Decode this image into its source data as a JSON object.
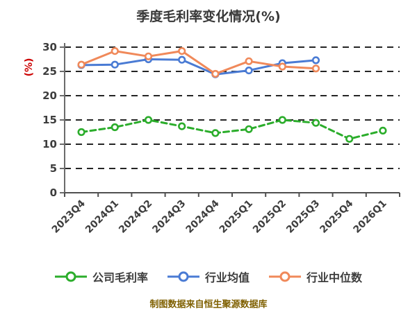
{
  "page": {
    "background": "#ffffff"
  },
  "chart_data": {
    "type": "line",
    "title": "季度毛利率变化情况(%)",
    "ylabel": "(%)",
    "ylabel_color": "#cc0000",
    "categories": [
      "2023Q4",
      "2024Q1",
      "2024Q2",
      "2024Q3",
      "2024Q4",
      "2025Q1",
      "2025Q2",
      "2025Q3",
      "2025Q4",
      "2026Q1"
    ],
    "series": [
      {
        "name": "公司毛利率",
        "color": "#2bad2b",
        "line_style": "dashed",
        "values": [
          12.5,
          13.5,
          15.0,
          13.7,
          12.3,
          13.1,
          15.0,
          14.4,
          11.1,
          12.8
        ]
      },
      {
        "name": "行业均值",
        "color": "#4a7bd4",
        "line_style": "solid",
        "values": [
          26.3,
          26.4,
          27.5,
          27.4,
          24.4,
          25.2,
          26.7,
          27.3,
          null,
          null
        ]
      },
      {
        "name": "行业中位数",
        "color": "#f0895a",
        "line_style": "solid",
        "values": [
          26.4,
          29.2,
          28.1,
          29.2,
          24.5,
          27.1,
          26.0,
          25.6,
          null,
          null
        ]
      }
    ],
    "y_ticks": [
      0,
      5,
      10,
      15,
      20,
      25,
      30
    ],
    "ylim": [
      0,
      30
    ],
    "grid": "horizontal-dashed",
    "grid_color": "#242424",
    "axis_color": "#6b6b6b",
    "tick_label_color": "#3d3d3d",
    "marker": "circle-white-fill",
    "legend_position": "bottom"
  },
  "footer": {
    "source_note": "制图数据来自恒生聚源数据库",
    "color": "#7f6000"
  }
}
